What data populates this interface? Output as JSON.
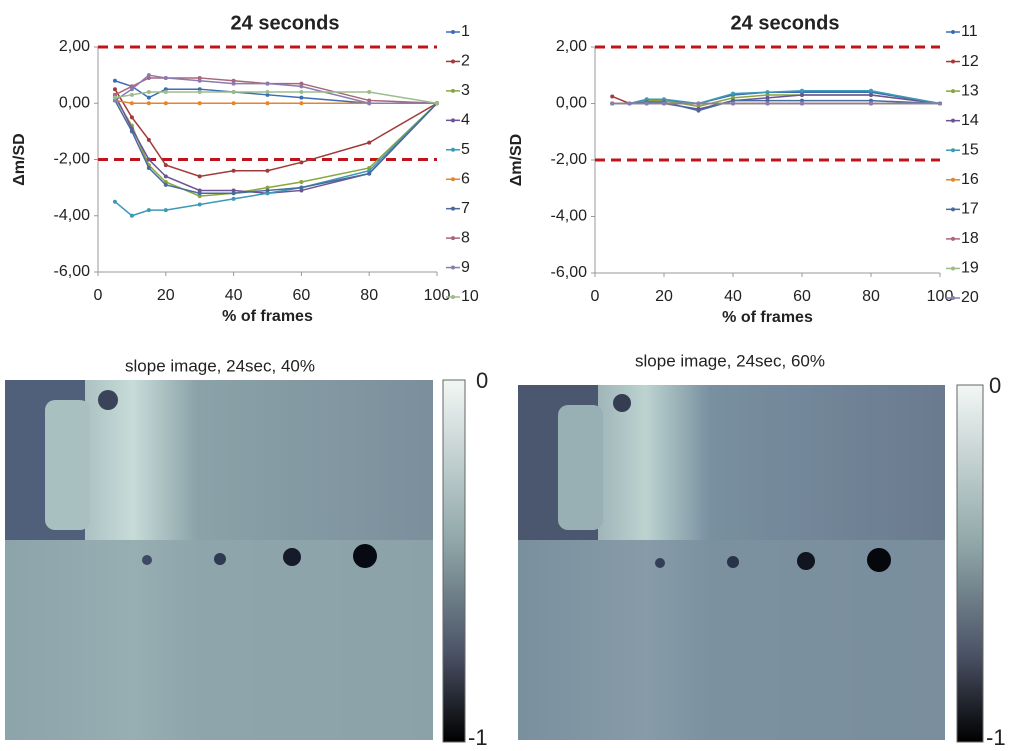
{
  "chart_data": [
    {
      "type": "line",
      "title": "24 seconds",
      "xlabel": "% of frames",
      "ylabel": "Δm/SD",
      "x": [
        5,
        10,
        15,
        20,
        30,
        40,
        50,
        60,
        80,
        100
      ],
      "xlim": [
        0,
        100
      ],
      "xticks": [
        0,
        20,
        40,
        60,
        80,
        100
      ],
      "ylim": [
        -6,
        2
      ],
      "yticks": [
        {
          "value": 2,
          "label": "2,00"
        },
        {
          "value": 0,
          "label": "0,00"
        },
        {
          "value": -2,
          "label": "-2,00"
        },
        {
          "value": -4,
          "label": "-4,00"
        },
        {
          "value": -6,
          "label": "-6,00"
        }
      ],
      "hlines": [
        2,
        -2
      ],
      "hline_color": "#c0141c",
      "legend": "right",
      "series": [
        {
          "name": "1",
          "color": "#3d6db5",
          "values": [
            0.8,
            0.6,
            0.2,
            0.5,
            0.5,
            0.4,
            0.3,
            0.2,
            0,
            0
          ]
        },
        {
          "name": "2",
          "color": "#a33a3a",
          "values": [
            0.5,
            -0.5,
            -1.3,
            -2.2,
            -2.6,
            -2.4,
            -2.4,
            -2.1,
            -1.4,
            0
          ]
        },
        {
          "name": "3",
          "color": "#8aa53f",
          "values": [
            0.2,
            -0.8,
            -2.2,
            -2.8,
            -3.3,
            -3.2,
            -3.0,
            -2.8,
            -2.3,
            0
          ]
        },
        {
          "name": "4",
          "color": "#6b5494",
          "values": [
            0.3,
            -0.9,
            -2.0,
            -2.6,
            -3.1,
            -3.1,
            -3.2,
            -3.1,
            -2.5,
            0
          ]
        },
        {
          "name": "5",
          "color": "#3a9ab8",
          "values": [
            -3.5,
            -4.0,
            -3.8,
            -3.8,
            -3.6,
            -3.4,
            -3.2,
            -3.0,
            -2.4,
            0
          ]
        },
        {
          "name": "6",
          "color": "#e3862e",
          "values": [
            0.1,
            0,
            0,
            0,
            0,
            0,
            0,
            0,
            0,
            0
          ]
        },
        {
          "name": "7",
          "color": "#4a6a9e",
          "values": [
            0.1,
            -1.0,
            -2.3,
            -2.9,
            -3.2,
            -3.2,
            -3.1,
            -3.0,
            -2.5,
            0
          ]
        },
        {
          "name": "8",
          "color": "#a8667a",
          "values": [
            0.3,
            0.6,
            0.9,
            0.9,
            0.9,
            0.8,
            0.7,
            0.7,
            0.1,
            0
          ]
        },
        {
          "name": "9",
          "color": "#8a7bb0",
          "values": [
            0.1,
            0.5,
            1.0,
            0.9,
            0.8,
            0.7,
            0.7,
            0.6,
            0,
            0
          ]
        },
        {
          "name": "10",
          "color": "#9bbd8a",
          "values": [
            0.2,
            0.3,
            0.4,
            0.4,
            0.4,
            0.4,
            0.4,
            0.4,
            0.4,
            0
          ]
        }
      ]
    },
    {
      "type": "line",
      "title": "24 seconds",
      "xlabel": "% of frames",
      "ylabel": "Δm/SD",
      "x": [
        5,
        10,
        15,
        20,
        30,
        40,
        50,
        60,
        80,
        100
      ],
      "xlim": [
        0,
        100
      ],
      "xticks": [
        0,
        20,
        40,
        60,
        80,
        100
      ],
      "ylim": [
        -6,
        2
      ],
      "yticks": [
        {
          "value": 2,
          "label": "2,00"
        },
        {
          "value": 0,
          "label": "0,00"
        },
        {
          "value": -2,
          "label": "-2,00"
        },
        {
          "value": -4,
          "label": "-4,00"
        },
        {
          "value": -6,
          "label": "-6,00"
        }
      ],
      "hlines": [
        2,
        -2
      ],
      "hline_color": "#c0141c",
      "legend": "right",
      "series": [
        {
          "name": "11",
          "color": "#3d6db5",
          "values": [
            0,
            0,
            0.1,
            0.1,
            0,
            0.3,
            0.4,
            0.4,
            0.4,
            0
          ]
        },
        {
          "name": "12",
          "color": "#a33a3a",
          "values": [
            0.25,
            0,
            0,
            0,
            0,
            0,
            0,
            0,
            0,
            0
          ]
        },
        {
          "name": "13",
          "color": "#8aa53f",
          "values": [
            0,
            0,
            0.1,
            0.1,
            -0.1,
            0.2,
            0.3,
            0.3,
            0.3,
            0
          ]
        },
        {
          "name": "14",
          "color": "#6b5494",
          "values": [
            0,
            0,
            0,
            0,
            -0.2,
            0.1,
            0.2,
            0.3,
            0.3,
            0
          ]
        },
        {
          "name": "15",
          "color": "#3a9ab8",
          "values": [
            0,
            0,
            0.15,
            0.15,
            0,
            0.35,
            0.4,
            0.45,
            0.45,
            0
          ]
        },
        {
          "name": "16",
          "color": "#e3862e",
          "values": [
            0,
            0,
            0,
            0,
            0,
            0,
            0,
            0,
            0,
            0
          ]
        },
        {
          "name": "17",
          "color": "#4a6a9e",
          "values": [
            0,
            0,
            0.05,
            0.05,
            -0.25,
            0.1,
            0.1,
            0.1,
            0.1,
            0
          ]
        },
        {
          "name": "18",
          "color": "#a8667a",
          "values": [
            0,
            0,
            0,
            0,
            0,
            0,
            0,
            0,
            0,
            0
          ]
        },
        {
          "name": "19",
          "color": "#9bbd8a",
          "values": [
            0,
            0,
            0,
            0,
            0,
            0,
            0,
            0,
            0,
            0
          ]
        },
        {
          "name": "20",
          "color": "#8a7bb0",
          "values": [
            0,
            0,
            0,
            0,
            0,
            0,
            0,
            0,
            0,
            0
          ]
        }
      ]
    }
  ],
  "images": [
    {
      "title": "slope image, 24sec, 40%",
      "colorbar": {
        "max": 0,
        "min": -1
      }
    },
    {
      "title": "slope image, 24sec, 60%",
      "colorbar": {
        "max": 0,
        "min": -1
      }
    }
  ]
}
